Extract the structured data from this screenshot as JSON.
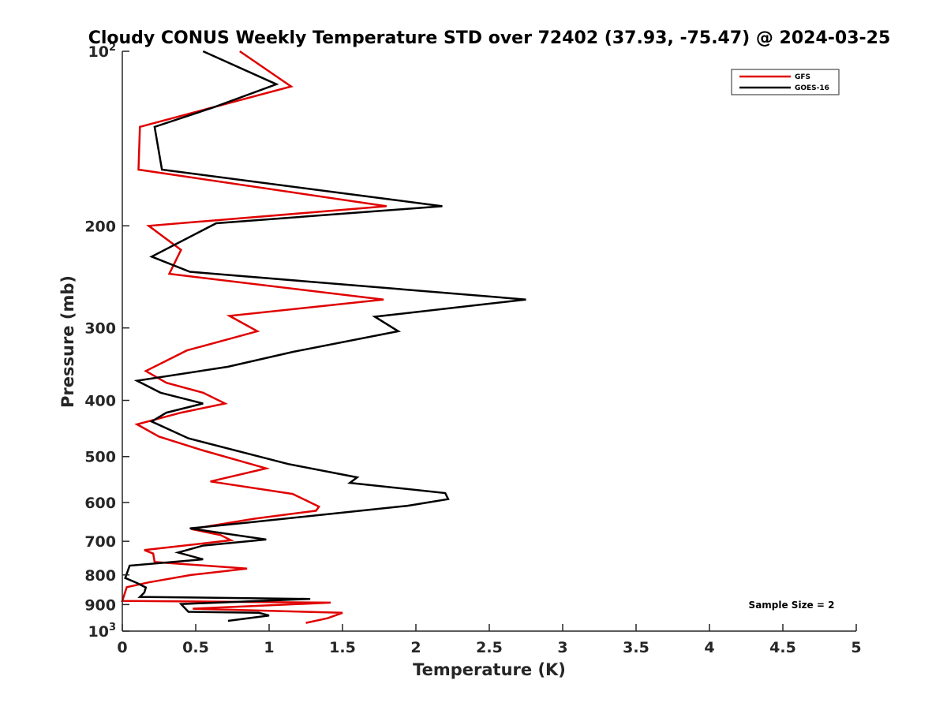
{
  "chart_data": {
    "type": "line",
    "title": "Cloudy CONUS Weekly Temperature STD over 72402 (37.93, -75.47) @ 2024-03-25",
    "xlabel": "Temperature (K)",
    "ylabel": "Pressure (mb)",
    "xlim": [
      0,
      5
    ],
    "ylim": [
      100,
      1000
    ],
    "y_scale": "log",
    "y_reversed": true,
    "x_ticks": [
      "0",
      "0.5",
      "1",
      "1.5",
      "2",
      "2.5",
      "3",
      "3.5",
      "4",
      "4.5",
      "5"
    ],
    "y_ticks": [
      {
        "value": 100,
        "base": "10",
        "exp": "2"
      },
      {
        "value": 200,
        "label": "200"
      },
      {
        "value": 300,
        "label": "300"
      },
      {
        "value": 400,
        "label": "400"
      },
      {
        "value": 500,
        "label": "500"
      },
      {
        "value": 600,
        "label": "600"
      },
      {
        "value": 700,
        "label": "700"
      },
      {
        "value": 800,
        "label": "800"
      },
      {
        "value": 900,
        "label": "900"
      },
      {
        "value": 1000,
        "base": "10",
        "exp": "3"
      }
    ],
    "grid": false,
    "legend_position": "top-right",
    "annotation": "Sample Size = 2",
    "series": [
      {
        "name": "GFS",
        "color": "#e00000",
        "points": [
          [
            0.8,
            100
          ],
          [
            1.15,
            115
          ],
          [
            0.12,
            135
          ],
          [
            0.11,
            160
          ],
          [
            1.8,
            185
          ],
          [
            0.18,
            200
          ],
          [
            0.4,
            220
          ],
          [
            0.32,
            242
          ],
          [
            1.78,
            268
          ],
          [
            0.73,
            286
          ],
          [
            0.92,
            304
          ],
          [
            0.44,
            328
          ],
          [
            0.16,
            356
          ],
          [
            0.3,
            373
          ],
          [
            0.55,
            388
          ],
          [
            0.7,
            405
          ],
          [
            0.4,
            420
          ],
          [
            0.1,
            440
          ],
          [
            0.25,
            462
          ],
          [
            0.55,
            488
          ],
          [
            0.98,
            524
          ],
          [
            0.6,
            552
          ],
          [
            1.16,
            580
          ],
          [
            1.34,
            610
          ],
          [
            1.32,
            620
          ],
          [
            0.9,
            640
          ],
          [
            0.47,
            667
          ],
          [
            0.67,
            683
          ],
          [
            0.74,
            697
          ],
          [
            0.15,
            725
          ],
          [
            0.21,
            735
          ],
          [
            0.22,
            760
          ],
          [
            0.85,
            780
          ],
          [
            0.47,
            800
          ],
          [
            0.18,
            824
          ],
          [
            0.03,
            840
          ],
          [
            0.0,
            887
          ],
          [
            1.42,
            893
          ],
          [
            0.48,
            915
          ],
          [
            1.5,
            930
          ],
          [
            1.4,
            950
          ],
          [
            1.25,
            968
          ]
        ]
      },
      {
        "name": "GOES-16",
        "color": "#000000",
        "points": [
          [
            0.55,
            100
          ],
          [
            1.05,
            114
          ],
          [
            0.62,
            125
          ],
          [
            0.22,
            135
          ],
          [
            0.27,
            160
          ],
          [
            2.18,
            185
          ],
          [
            0.64,
            198
          ],
          [
            0.2,
            226
          ],
          [
            0.46,
            240
          ],
          [
            2.75,
            268
          ],
          [
            1.72,
            287
          ],
          [
            1.88,
            304
          ],
          [
            1.16,
            330
          ],
          [
            0.72,
            350
          ],
          [
            0.1,
            370
          ],
          [
            0.26,
            388
          ],
          [
            0.55,
            405
          ],
          [
            0.3,
            420
          ],
          [
            0.2,
            435
          ],
          [
            0.45,
            465
          ],
          [
            1.13,
            515
          ],
          [
            1.6,
            543
          ],
          [
            1.55,
            555
          ],
          [
            2.2,
            578
          ],
          [
            2.22,
            592
          ],
          [
            1.94,
            608
          ],
          [
            0.85,
            650
          ],
          [
            0.46,
            665
          ],
          [
            0.98,
            695
          ],
          [
            0.55,
            712
          ],
          [
            0.38,
            732
          ],
          [
            0.55,
            752
          ],
          [
            0.05,
            771
          ],
          [
            0.02,
            810
          ],
          [
            0.1,
            826
          ],
          [
            0.16,
            841
          ],
          [
            0.15,
            858
          ],
          [
            0.12,
            873
          ],
          [
            1.28,
            880
          ],
          [
            0.4,
            898
          ],
          [
            0.45,
            926
          ],
          [
            0.93,
            930
          ],
          [
            1.0,
            940
          ],
          [
            0.72,
            960
          ]
        ]
      }
    ]
  }
}
